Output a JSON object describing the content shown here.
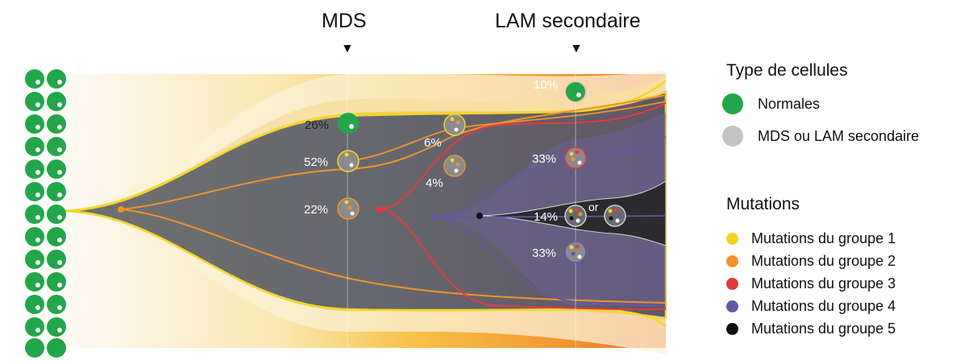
{
  "headers": {
    "mds": "MDS",
    "aml": "LAM secondaire"
  },
  "arrow_glyph": "▼",
  "labels": {
    "normal_t1": "26%",
    "clone_a_t1": "52%",
    "clone_b_t1": "22%",
    "clone_c_t2": "6%",
    "clone_d_t2": "4%",
    "normal_t3": "10%",
    "clone_e_t3": "33%",
    "clone_f_t3": "14%",
    "or": "or",
    "clone_g_t3": "33%"
  },
  "legend": {
    "cell_type_title": "Type de cellules",
    "cell_types": [
      {
        "label": "Normales",
        "color": "#22a64a"
      },
      {
        "label": "MDS ou LAM secondaire",
        "color": "#c4c4c4"
      }
    ],
    "mutations_title": "Mutations",
    "mutations": [
      {
        "label": "Mutations du groupe 1",
        "color": "#f7d21e"
      },
      {
        "label": "Mutations du groupe 2",
        "color": "#f2922c"
      },
      {
        "label": "Mutations du groupe 3",
        "color": "#e23b3b"
      },
      {
        "label": "Mutations du groupe 4",
        "color": "#6457a6"
      },
      {
        "label": "Mutations du groupe 5",
        "color": "#111111"
      }
    ]
  }
}
